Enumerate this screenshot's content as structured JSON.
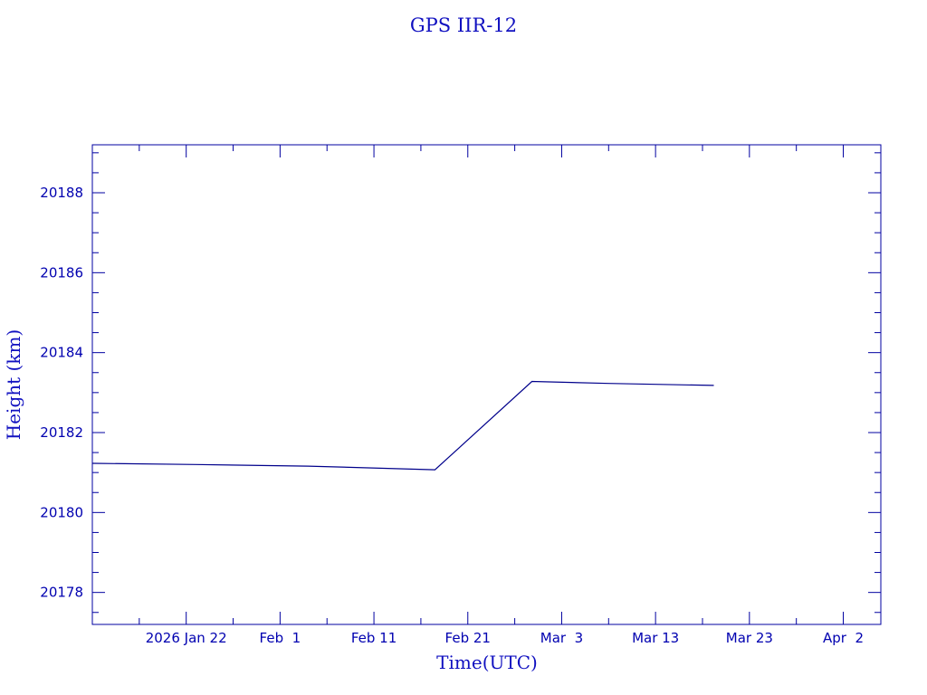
{
  "chart_data": {
    "type": "line",
    "title": "GPS IIR-12",
    "xlabel": "Time(UTC)",
    "ylabel": "Height (km)",
    "xlim": [
      "2026-01-12T00:00",
      "2026-04-06T00:00"
    ],
    "ylim": [
      20177.2,
      20189.2
    ],
    "x_ticks": [
      {
        "date": "2026-01-22",
        "label": "2026 Jan 22"
      },
      {
        "date": "2026-02-01",
        "label": "Feb  1"
      },
      {
        "date": "2026-02-11",
        "label": "Feb 11"
      },
      {
        "date": "2026-02-21",
        "label": "Feb 21"
      },
      {
        "date": "2026-03-03",
        "label": "Mar  3"
      },
      {
        "date": "2026-03-13",
        "label": "Mar 13"
      },
      {
        "date": "2026-03-23",
        "label": "Mar 23"
      },
      {
        "date": "2026-04-02",
        "label": "Apr  2"
      }
    ],
    "y_ticks": [
      20178,
      20180,
      20182,
      20184,
      20186,
      20188
    ],
    "grid": false,
    "color": "#00008b",
    "series": [
      {
        "x": [
          "2026-01-12T00:00",
          "2026-01-23T00:00",
          "2026-02-04T00:00",
          "2026-02-17T12:00",
          "2026-02-27T20:00",
          "2026-03-08T00:00",
          "2026-03-19T05:00"
        ],
        "y": [
          20181.23,
          20181.2,
          20181.16,
          20181.07,
          20183.28,
          20183.23,
          20183.18
        ]
      }
    ]
  }
}
